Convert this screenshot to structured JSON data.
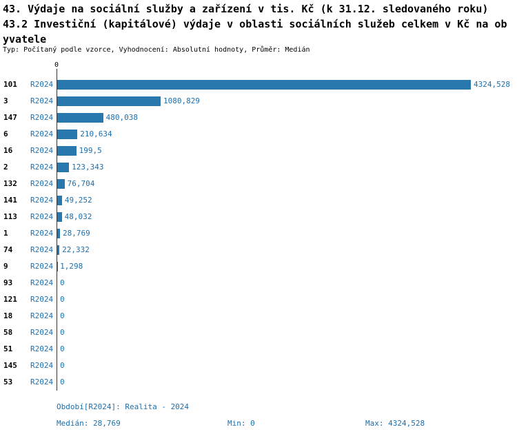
{
  "title": {
    "line1": "43. Výdaje na sociální služby a zařízení v tis. Kč (k 31.12. sledovaného roku)",
    "line2": "43.2 Investiční (kapitálové) výdaje v oblasti sociálních služeb celkem v Kč na ob",
    "line3": "yvatele",
    "meta": "Typ: Počítaný podle vzorce, Vyhodnocení: Absolutní hodnoty, Průměr: Medián"
  },
  "chart_data": {
    "type": "bar",
    "orientation": "horizontal",
    "title": "43.2 Investiční (kapitálové) výdaje v oblasti sociálních služeb celkem v Kč na obyvatele",
    "axis_zero_label": "0",
    "series_label": "R2024",
    "categories": [
      "101",
      "3",
      "147",
      "6",
      "16",
      "2",
      "132",
      "141",
      "113",
      "1",
      "74",
      "9",
      "93",
      "121",
      "18",
      "58",
      "51",
      "145",
      "53"
    ],
    "values": [
      4324.528,
      1080.829,
      480.038,
      210.634,
      199.5,
      123.343,
      76.704,
      49.252,
      48.032,
      28.769,
      22.332,
      1.298,
      0,
      0,
      0,
      0,
      0,
      0,
      0
    ],
    "value_labels": [
      "4324,528",
      "1080,829",
      "480,038",
      "210,634",
      "199,5",
      "123,343",
      "76,704",
      "49,252",
      "48,032",
      "28,769",
      "22,332",
      "1,298",
      "0",
      "0",
      "0",
      "0",
      "0",
      "0",
      "0"
    ],
    "xlim": [
      0,
      4324.528
    ],
    "grid": false,
    "legend_position": "none",
    "bar_color": "#2878ae",
    "label_color": "#1b6fae"
  },
  "footer": {
    "period": "Období[R2024]: Realita - 2024",
    "median": "Medián: 28,769",
    "min": "Min: 0",
    "max": "Max: 4324,528"
  }
}
